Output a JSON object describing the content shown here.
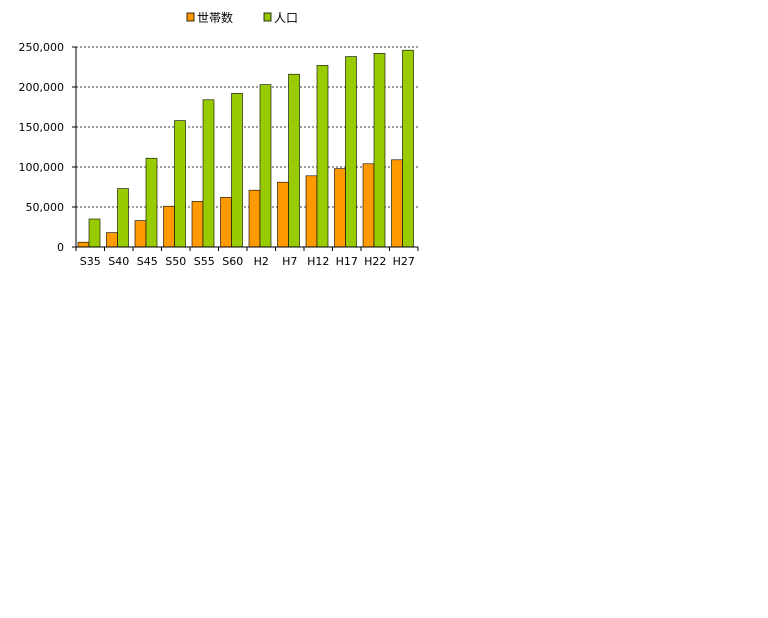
{
  "colors": {
    "households": "#ff9900",
    "population": "#99cc00",
    "bar_outline": "#000000",
    "grid": "#000000",
    "background": "#ffffff"
  },
  "chart_data": {
    "type": "bar",
    "title": "",
    "xlabel": "",
    "ylabel": "",
    "categories": [
      "S35",
      "S40",
      "S45",
      "S50",
      "S55",
      "S60",
      "H2",
      "H7",
      "H12",
      "H17",
      "H22",
      "H27"
    ],
    "series": [
      {
        "name": "世帯数",
        "color": "#ff9900",
        "values": [
          6000,
          18000,
          33000,
          51000,
          57000,
          62000,
          71000,
          81000,
          89000,
          98000,
          104000,
          109000
        ]
      },
      {
        "name": "人口",
        "color": "#99cc00",
        "values": [
          35000,
          73000,
          111000,
          158000,
          184000,
          192000,
          203000,
          216000,
          227000,
          238000,
          242000,
          246000
        ]
      }
    ],
    "ylim": [
      0,
      250000
    ],
    "yticks": [
      0,
      50000,
      100000,
      150000,
      200000,
      250000
    ],
    "ytick_labels": [
      "0",
      "50,000",
      "100,000",
      "150,000",
      "200,000",
      "250,000"
    ],
    "grid": true,
    "grid_style": "dashed",
    "legend_placement": "top"
  }
}
